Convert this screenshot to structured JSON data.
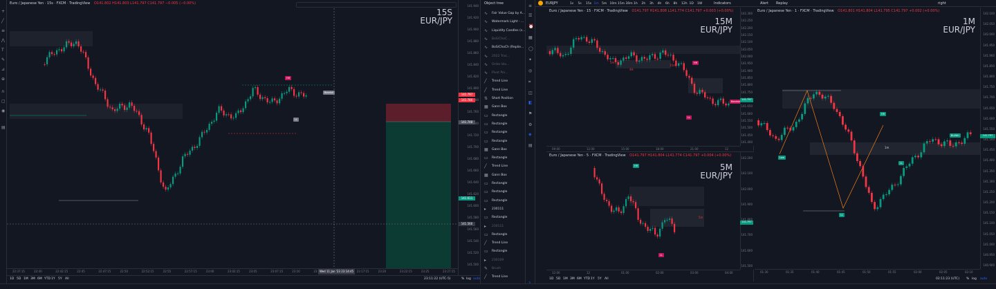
{
  "left_chart": {
    "title": "Euro / Japanese Yen · 15s · FXCM · TradingView",
    "ohlc": "O141.802 H141.803 L141.797 C141.797 −0.005 (−0.00%)",
    "interval_big": "15S",
    "symbol_big": "EUR/JPY",
    "price_labels": [
      "141.940",
      "141.920",
      "141.900",
      "141.880",
      "141.860",
      "141.840",
      "141.820",
      "141.800",
      "141.780",
      "141.760",
      "141.740",
      "141.720",
      "141.700",
      "141.680",
      "141.660",
      "141.640",
      "141.620",
      "141.600",
      "141.580",
      "141.560",
      "141.540",
      "141.520",
      "141.500"
    ],
    "time_labels": [
      "22:37:15",
      "22:40",
      "22:42:15",
      "22:45",
      "22:47:15",
      "22:50",
      "22:52:15",
      "22:55",
      "22:57:15",
      "23:00",
      "23:02:15",
      "23:05",
      "23:07:15",
      "23:10",
      "23:12:15",
      "23:15",
      "23:17:15",
      "23:20",
      "23:22:15",
      "23:25",
      "23:27:15"
    ],
    "cursor_time": "Wed 11 Jan '23  23:14:45",
    "badges": {
      "hh": "HH",
      "ll": "LL",
      "bearish": "Bearish"
    },
    "price_tags": [
      "141.797",
      "141.780",
      "141.748",
      "141.611",
      "141.560"
    ],
    "ranges": [
      "1D",
      "5D",
      "1M",
      "3M",
      "6M",
      "YTD",
      "1Y",
      "5Y",
      "All"
    ],
    "clock": "23:11:22 (UTC-5)",
    "scale": [
      "%",
      "log",
      "auto"
    ]
  },
  "object_tree": {
    "title": "Object tree",
    "items": [
      {
        "label": "Fair Value Gap by A...",
        "dim": false,
        "icon": "indicator-icon"
      },
      {
        "label": "Watermark Light - ...",
        "dim": false,
        "icon": "indicator-icon"
      },
      {
        "label": "Liquidity Candles (s...",
        "dim": false,
        "icon": "indicator-icon"
      },
      {
        "label": "BoS/ChoC...",
        "dim": true,
        "icon": "indicator-icon"
      },
      {
        "label": "BoS/ChoCh (Replie...",
        "dim": false,
        "icon": "indicator-icon"
      },
      {
        "label": "2022 Trac...",
        "dim": true,
        "icon": "indicator-icon"
      },
      {
        "label": "Order blo...",
        "dim": true,
        "icon": "indicator-icon"
      },
      {
        "label": "Pivot Poi...",
        "dim": true,
        "icon": "indicator-icon"
      },
      {
        "label": "Trend Line",
        "dim": false,
        "icon": "trend-line-icon"
      },
      {
        "label": "Trend Line",
        "dim": false,
        "icon": "trend-line-icon"
      },
      {
        "label": "Short Position",
        "dim": false,
        "icon": "short-position-icon"
      },
      {
        "label": "Gann Box",
        "dim": false,
        "icon": "gann-box-icon"
      },
      {
        "label": "Rectangle",
        "dim": false,
        "icon": "rectangle-icon"
      },
      {
        "label": "Rectangle",
        "dim": false,
        "icon": "rectangle-icon"
      },
      {
        "label": "Rectangle",
        "dim": false,
        "icon": "rectangle-icon"
      },
      {
        "label": "Rectangle",
        "dim": false,
        "icon": "rectangle-icon"
      },
      {
        "label": "Gann Box",
        "dim": false,
        "icon": "gann-box-icon"
      },
      {
        "label": "Rectangle",
        "dim": false,
        "icon": "rectangle-icon"
      },
      {
        "label": "Trend Line",
        "dim": false,
        "icon": "trend-line-icon"
      },
      {
        "label": "Gann Box",
        "dim": false,
        "icon": "gann-box-icon"
      },
      {
        "label": "Rectangle",
        "dim": false,
        "icon": "rectangle-icon"
      },
      {
        "label": "Rectangle",
        "dim": false,
        "icon": "rectangle-icon"
      },
      {
        "label": "Rectangle",
        "dim": false,
        "icon": "rectangle-icon"
      },
      {
        "label": "230111",
        "dim": false,
        "icon": "folder-icon"
      },
      {
        "label": "Rectangle",
        "dim": false,
        "icon": "rectangle-icon"
      },
      {
        "label": "230111",
        "dim": true,
        "icon": "folder-icon"
      },
      {
        "label": "Rectangle",
        "dim": false,
        "icon": "rectangle-icon"
      },
      {
        "label": "Trend Line",
        "dim": false,
        "icon": "trend-line-icon"
      },
      {
        "label": "Rectangle",
        "dim": false,
        "icon": "rectangle-icon"
      },
      {
        "label": "230109",
        "dim": true,
        "icon": "folder-icon"
      },
      {
        "label": "Brush",
        "dim": true,
        "icon": "brush-icon"
      },
      {
        "label": "Trend Line",
        "dim": false,
        "icon": "trend-line-icon"
      }
    ]
  },
  "top_bar": {
    "symbol": "EURJPY",
    "intervals": [
      "1s",
      "5s",
      "15s",
      "1m",
      "5m",
      "10m",
      "15m",
      "30m",
      "1h",
      "2h",
      "3h",
      "4h",
      "6h",
      "8h",
      "12h",
      "1D",
      "1W"
    ],
    "active_interval": "1m",
    "indicators": "Indicators",
    "alert": "Alert",
    "replay": "Replay",
    "layout": "right"
  },
  "chart_15m": {
    "title": "Euro / Japanese Yen · 15 · FXCM · TradingView",
    "ohlc": "O141.797 H141.808 L141.774 C141.797 +0.003 (+0.00%)",
    "interval_big": "15M",
    "symbol_big": "EUR/JPY",
    "price_labels": [
      "142.300",
      "142.250",
      "142.200",
      "142.150",
      "142.100",
      "142.050",
      "142.000",
      "141.950",
      "141.900",
      "141.850",
      "141.800",
      "141.750",
      "141.700",
      "141.650",
      "141.600",
      "141.550",
      "141.500",
      "141.450",
      "141.400"
    ],
    "time_labels": [
      "09:00",
      "12:00",
      "15:00",
      "18:00",
      "21:00",
      "12"
    ],
    "badges": {
      "hh": "HH",
      "ll": "LL",
      "bearish": "Bearish",
      "5m": "5m",
      "4h": "4H",
      "15m": "15m"
    },
    "price_tag": "141.797"
  },
  "chart_5m": {
    "title": "Euro / Japanese Yen · 5 · FXCM · TradingView",
    "ohlc": "O141.797 H141.804 L141.774 C141.797 +0.004 (+0.00%)",
    "interval_big": "5M",
    "symbol_big": "EUR/JPY",
    "price_labels": [
      "142.200",
      "142.100",
      "142.000",
      "141.900",
      "141.800",
      "141.700",
      "141.600",
      "141.500"
    ],
    "time_labels": [
      "12:00",
      "12",
      "01:00",
      "02:00",
      "03:00",
      "04:00"
    ],
    "badges": {
      "hh": "HH",
      "ll": "LL",
      "5m": "5m"
    },
    "price_tag": "141.797",
    "ranges": [
      "1D",
      "5D",
      "1M",
      "3M",
      "6M",
      "YTD",
      "1Y",
      "5Y",
      "All"
    ]
  },
  "chart_1m": {
    "title": "Euro / Japanese Yen · 1 · FXCM · TradingView",
    "ohlc": "O141.801 H141.804 L141.795 C141.797 +0.002 (+0.00%)",
    "interval_big": "1M",
    "symbol_big": "EUR/JPY",
    "price_labels": [
      "142.100",
      "142.050",
      "142.000",
      "141.950",
      "141.900",
      "141.850",
      "141.800",
      "141.750",
      "141.700",
      "141.650",
      "141.600",
      "141.550",
      "141.500",
      "141.450",
      "141.400",
      "141.350",
      "141.300",
      "141.250",
      "141.200",
      "141.150",
      "141.100",
      "141.050",
      "141.000",
      "140.950",
      "140.900"
    ],
    "time_labels": [
      "01:30",
      "01:35",
      "01:40",
      "01:45",
      "01:50",
      "01:55",
      "02:00",
      "02:05",
      "02:10"
    ],
    "badges": {
      "hh": "HH",
      "ll": "LL",
      "low": "Low",
      "bullish": "Bullish",
      "1m": "1m"
    },
    "price_tag": "141.797",
    "clock": "02:11:23 (UTC)",
    "scale": [
      "%",
      "log",
      "auto"
    ]
  },
  "colors": {
    "bg": "#131722",
    "up": "#089981",
    "down": "#f23645",
    "accent": "#2962ff",
    "grid": "#1e222d",
    "purple": "#9c27b0"
  }
}
